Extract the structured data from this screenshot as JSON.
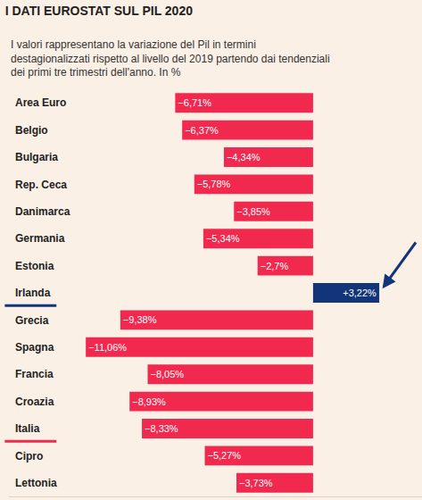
{
  "chart_data": {
    "type": "bar",
    "orientation": "horizontal",
    "title": "I DATI EUROSTAT SUL PIL 2020",
    "subtitle": "I valori rappresentano la variazione del Pil in termini destagionalizzati rispetto al livello del 2019 partendo dai tendenziali dei primi tre trimestri dell'anno. In %",
    "categories": [
      "Area Euro",
      "Belgio",
      "Bulgaria",
      "Rep. Ceca",
      "Danimarca",
      "Germania",
      "Estonia",
      "Irlanda",
      "Grecia",
      "Spagna",
      "Francia",
      "Croazia",
      "Italia",
      "Cipro",
      "Lettonia"
    ],
    "values": [
      -6.71,
      -6.37,
      -4.34,
      -5.78,
      -3.85,
      -5.34,
      -2.7,
      3.22,
      -9.38,
      -11.06,
      -8.05,
      -8.93,
      -8.33,
      -5.27,
      -3.73
    ],
    "value_labels": [
      "−6,71%",
      "−6,37%",
      "−4,34%",
      "−5,78%",
      "−3,85%",
      "−5,34%",
      "−2,7%",
      "+3,22%",
      "−9,38%",
      "−11,06%",
      "−8,05%",
      "−8,93%",
      "−8,33%",
      "−5,27%",
      "−3,73%"
    ],
    "colors": [
      "#f2294f",
      "#f2294f",
      "#f2294f",
      "#f2294f",
      "#f2294f",
      "#f2294f",
      "#f2294f",
      "#12357a",
      "#f2294f",
      "#f2294f",
      "#f2294f",
      "#f2294f",
      "#f2294f",
      "#f2294f",
      "#f2294f"
    ],
    "xlim": [
      -14.8,
      5.3
    ],
    "data_labels": true,
    "tick_labels": "y",
    "grid": false
  }
}
